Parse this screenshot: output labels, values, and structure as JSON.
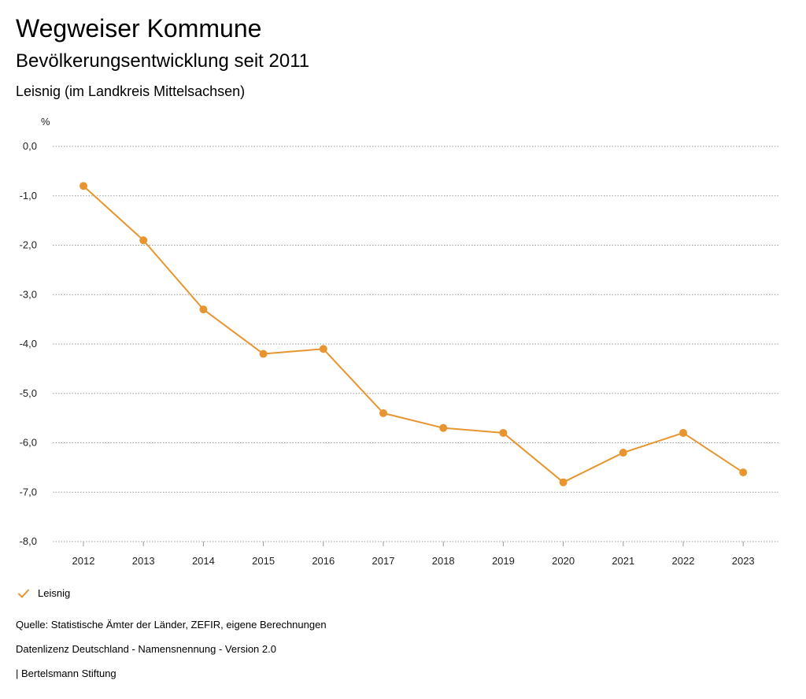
{
  "header": {
    "title": "Wegweiser Kommune",
    "subtitle": "Bevölkerungsentwicklung seit 2011",
    "place": "Leisnig (im Landkreis Mittelsachsen)"
  },
  "colors": {
    "series": "#e8952f",
    "grid": "#9a9a9a",
    "text": "#222222"
  },
  "chart_data": {
    "type": "line",
    "title": "Bevölkerungsentwicklung seit 2011",
    "ylabel": "%",
    "xlabel": "",
    "ylim": [
      -8,
      0
    ],
    "yticks": [
      {
        "value": 0,
        "label": "0,0"
      },
      {
        "value": -1,
        "label": "-1,0"
      },
      {
        "value": -2,
        "label": "-2,0"
      },
      {
        "value": -3,
        "label": "-3,0"
      },
      {
        "value": -4,
        "label": "-4,0"
      },
      {
        "value": -5,
        "label": "-5,0"
      },
      {
        "value": -6,
        "label": "-6,0"
      },
      {
        "value": -7,
        "label": "-7,0"
      },
      {
        "value": -8,
        "label": "-8,0"
      }
    ],
    "grid": true,
    "categories": [
      "2012",
      "2013",
      "2014",
      "2015",
      "2016",
      "2017",
      "2018",
      "2019",
      "2020",
      "2021",
      "2022",
      "2023"
    ],
    "series": [
      {
        "name": "Leisnig",
        "values": [
          -0.8,
          -1.9,
          -3.3,
          -4.2,
          -4.1,
          -5.4,
          -5.7,
          -5.8,
          -6.8,
          -6.2,
          -5.8,
          -6.6
        ]
      }
    ],
    "legend": "bottom-left"
  },
  "legend": {
    "label": "Leisnig"
  },
  "footer": {
    "source": "Quelle: Statistische Ämter der Länder, ZEFIR, eigene Berechnungen",
    "license": "Datenlizenz Deutschland - Namensnennung - Version 2.0",
    "publisher": "| Bertelsmann Stiftung"
  }
}
